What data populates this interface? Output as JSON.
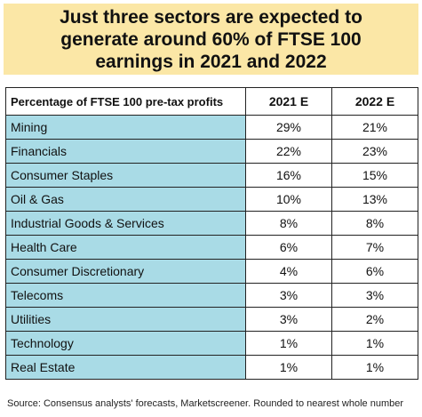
{
  "chart_data": {
    "type": "table",
    "title": "Just three sectors are expected to generate around 60% of FTSE 100 earnings in 2021 and 2022",
    "columns": [
      "Percentage of FTSE 100 pre-tax profits",
      "2021 E",
      "2022 E"
    ],
    "rows": [
      {
        "sector": "Mining",
        "y2021": "29%",
        "y2022": "21%"
      },
      {
        "sector": "Financials",
        "y2021": "22%",
        "y2022": "23%"
      },
      {
        "sector": "Consumer Staples",
        "y2021": "16%",
        "y2022": "15%"
      },
      {
        "sector": "Oil & Gas",
        "y2021": "10%",
        "y2022": "13%"
      },
      {
        "sector": "Industrial Goods & Services",
        "y2021": "8%",
        "y2022": "8%"
      },
      {
        "sector": "Health Care",
        "y2021": "6%",
        "y2022": "7%"
      },
      {
        "sector": "Consumer Discretionary",
        "y2021": "4%",
        "y2022": "6%"
      },
      {
        "sector": "Telecoms",
        "y2021": "3%",
        "y2022": "3%"
      },
      {
        "sector": "Utilities",
        "y2021": "3%",
        "y2022": "2%"
      },
      {
        "sector": "Technology",
        "y2021": "1%",
        "y2022": "1%"
      },
      {
        "sector": "Real Estate",
        "y2021": "1%",
        "y2022": "1%"
      }
    ],
    "source": "Source: Consensus analysts' forecasts, Marketscreener. Rounded to nearest whole number",
    "colors": {
      "title_background": "#fbe7a6",
      "category_background": "#a9dbe6",
      "border": "#222222"
    }
  }
}
